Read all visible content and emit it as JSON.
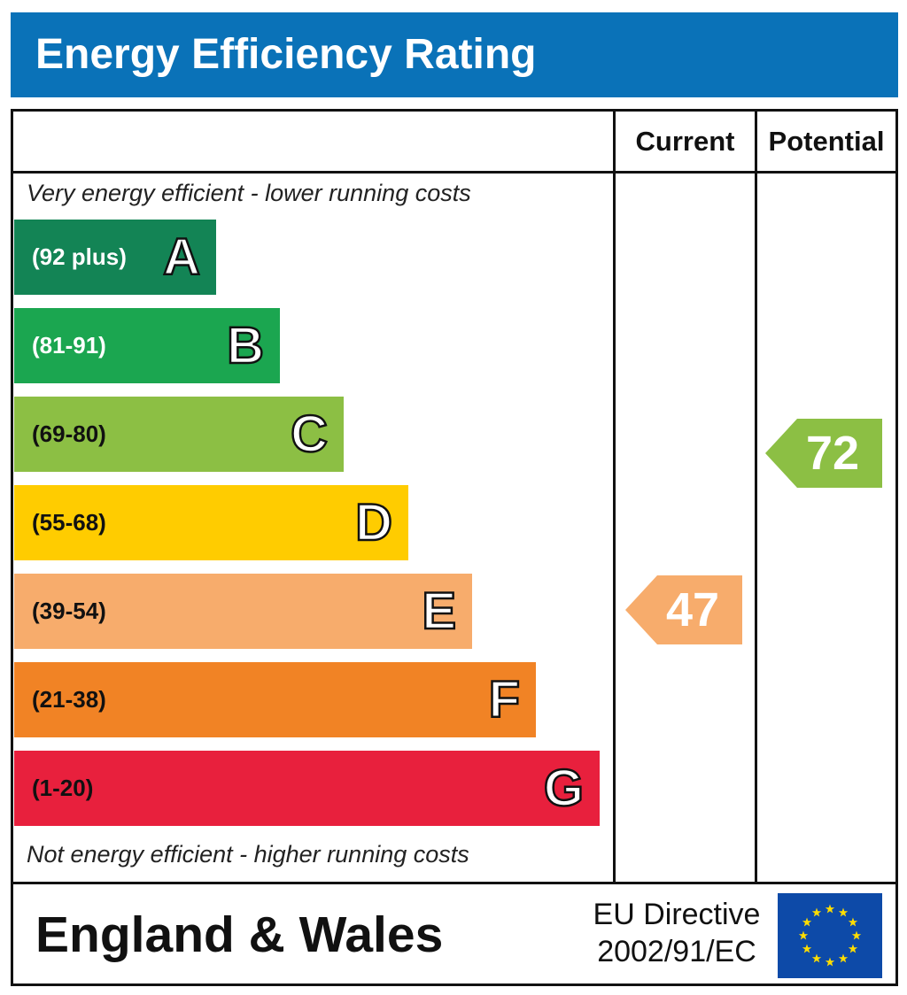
{
  "header": {
    "title": "Energy Efficiency Rating"
  },
  "columns": {
    "current": "Current",
    "potential": "Potential"
  },
  "captions": {
    "top": "Very energy efficient - lower running costs",
    "bottom": "Not energy efficient - higher running costs"
  },
  "footer": {
    "region": "England & Wales",
    "directive_line1": "EU Directive",
    "directive_line2": "2002/91/EC",
    "flag_icon": "eu-flag-icon"
  },
  "chart_data": {
    "type": "bar",
    "categories": [
      "A",
      "B",
      "C",
      "D",
      "E",
      "F",
      "G"
    ],
    "ranges": [
      "(92 plus)",
      "(81-91)",
      "(69-80)",
      "(55-68)",
      "(39-54)",
      "(21-38)",
      "(1-20)"
    ],
    "colors": [
      "#138455",
      "#1ba650",
      "#8cbf44",
      "#ffcc00",
      "#f7ac6c",
      "#f18325",
      "#e8203d"
    ],
    "range_text_colors": [
      "#ffffff",
      "#ffffff",
      "#111111",
      "#111111",
      "#111111",
      "#111111",
      "#111111"
    ],
    "current": {
      "value": 47,
      "band": "E",
      "color": "#f7ac6c"
    },
    "potential": {
      "value": 72,
      "band": "C",
      "color": "#8cbf44"
    }
  }
}
